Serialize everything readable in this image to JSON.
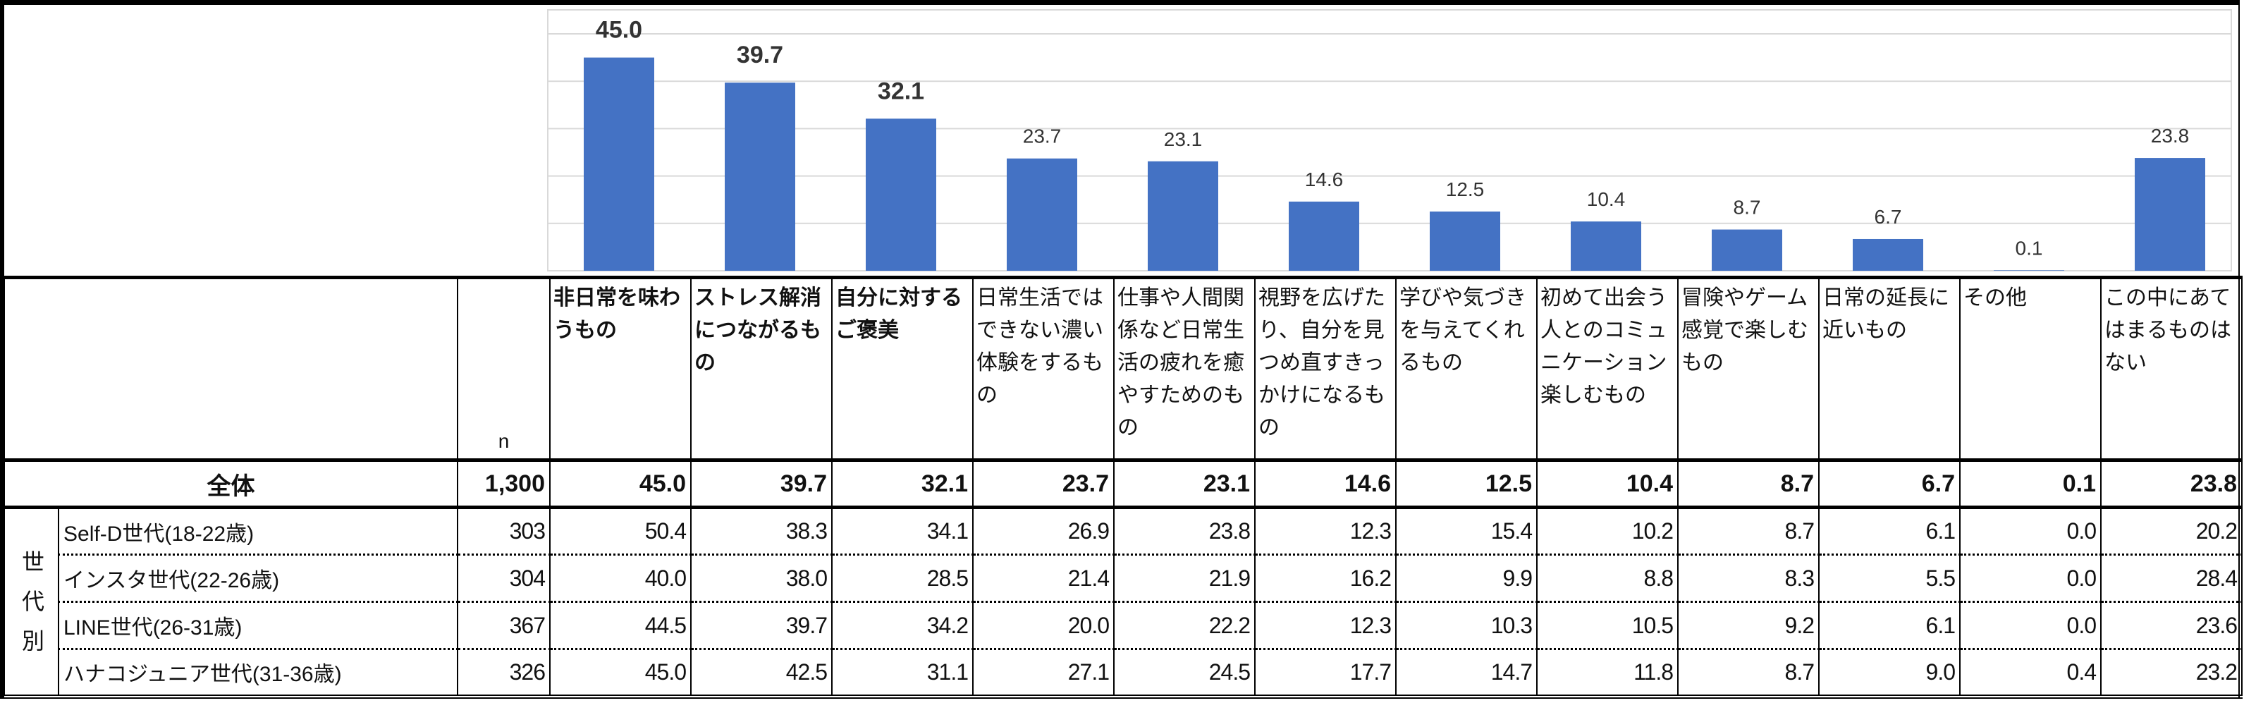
{
  "chart_data": {
    "type": "bar",
    "categories": [
      "非日常を味わうもの",
      "ストレス解消につながるもの",
      "自分に対するご褒美",
      "日常生活ではできない濃い体験をするもの",
      "仕事や人間関係など日常生活の疲れを癒やすためのもの",
      "視野を広げたり、自分を見つめ直すきっかけになるもの",
      "学びや気づきを与えてくれるもの",
      "初めて出会う人とのコミュニケーション楽しむもの",
      "冒険やゲーム感覚で楽しむもの",
      "日常の延長に近いもの",
      "その他",
      "この中にあてはまるものはない"
    ],
    "values": [
      45.0,
      39.7,
      32.1,
      23.7,
      23.1,
      14.6,
      12.5,
      10.4,
      8.7,
      6.7,
      0.1,
      23.8
    ],
    "labels": [
      "45.0",
      "39.7",
      "32.1",
      "23.7",
      "23.1",
      "14.6",
      "12.5",
      "10.4",
      "8.7",
      "6.7",
      "0.1",
      "23.8"
    ],
    "bold_count": 3,
    "ylim": [
      0,
      55
    ],
    "grid_step": 10,
    "grid": true,
    "bar_color": "#4472C4",
    "title": "",
    "xlabel": "",
    "ylabel": ""
  },
  "table": {
    "n_header": "n",
    "group_label": "世代別",
    "headers": [
      "非日常を味わうもの",
      "ストレス解消につながるもの",
      "自分に対するご褒美",
      "日常生活ではできない濃い体験をするもの",
      "仕事や人間関係など日常生活の疲れを癒やすためのもの",
      "視野を広げたり、自分を見つめ直すきっかけになるもの",
      "学びや気づきを与えてくれるもの",
      "初めて出会う人とのコミュニケーション楽しむもの",
      "冒険やゲーム感覚で楽しむもの",
      "日常の延長に近いもの",
      "その他",
      "この中にあてはまるものはない"
    ],
    "total": {
      "label": "全体",
      "n": "1,300",
      "values": [
        "45.0",
        "39.7",
        "32.1",
        "23.7",
        "23.1",
        "14.6",
        "12.5",
        "10.4",
        "8.7",
        "6.7",
        "0.1",
        "23.8"
      ]
    },
    "rows": [
      {
        "label": "Self-D世代(18-22歳)",
        "n": "303",
        "values": [
          "50.4",
          "38.3",
          "34.1",
          "26.9",
          "23.8",
          "12.3",
          "15.4",
          "10.2",
          "8.7",
          "6.1",
          "0.0",
          "20.2"
        ]
      },
      {
        "label": "インスタ世代(22-26歳)",
        "n": "304",
        "values": [
          "40.0",
          "38.0",
          "28.5",
          "21.4",
          "21.9",
          "16.2",
          "9.9",
          "8.8",
          "8.3",
          "5.5",
          "0.0",
          "28.4"
        ]
      },
      {
        "label": "LINE世代(26-31歳)",
        "n": "367",
        "values": [
          "44.5",
          "39.7",
          "34.2",
          "20.0",
          "22.2",
          "12.3",
          "10.3",
          "10.5",
          "9.2",
          "6.1",
          "0.0",
          "23.6"
        ]
      },
      {
        "label": "ハナコジュニア世代(31-36歳)",
        "n": "326",
        "values": [
          "45.0",
          "42.5",
          "31.1",
          "27.1",
          "24.5",
          "17.7",
          "14.7",
          "11.8",
          "8.7",
          "9.0",
          "0.4",
          "23.2"
        ]
      }
    ]
  }
}
